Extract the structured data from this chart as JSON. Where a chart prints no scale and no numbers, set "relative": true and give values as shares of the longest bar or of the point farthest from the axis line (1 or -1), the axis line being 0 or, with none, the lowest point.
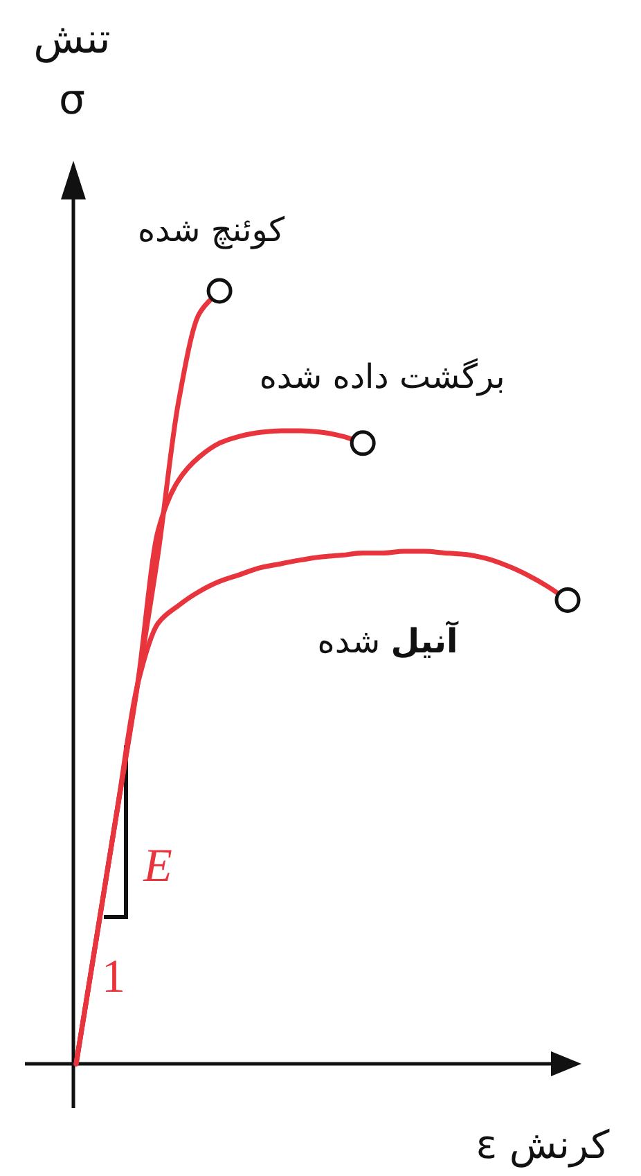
{
  "chart_data": {
    "type": "line",
    "relative": true,
    "xlabel": "ε کرنش",
    "ylabel": "تنش σ",
    "categories": [
      null,
      null,
      null,
      null,
      null,
      null,
      null,
      null,
      null,
      null,
      null,
      null,
      null,
      null,
      null,
      null,
      null,
      null,
      null,
      null,
      null,
      null,
      null,
      null,
      null
    ],
    "series": [
      {
        "name": "کوئنچ شده",
        "color": "#e8343c",
        "values": [
          0,
          0.164,
          0.328,
          0.491,
          0.66,
          0.857,
          0.97,
          1.0,
          null,
          null,
          null,
          null,
          null,
          null,
          null,
          null,
          null,
          null,
          null,
          null,
          null,
          null,
          null,
          null,
          null
        ]
      },
      {
        "name": "برگشت داده شده",
        "color": "#e8343c",
        "values": [
          0,
          0.164,
          0.328,
          0.491,
          0.69,
          0.755,
          0.785,
          0.803,
          0.812,
          0.817,
          0.819,
          0.819,
          0.817,
          0.812,
          0.803,
          null,
          null,
          null,
          null,
          null,
          null,
          null,
          null,
          null,
          null
        ]
      },
      {
        "name": "**آنیل** شده",
        "color": "#e8343c",
        "values": [
          0,
          0.164,
          0.328,
          0.491,
          0.57,
          0.593,
          0.611,
          0.624,
          0.633,
          0.642,
          0.647,
          0.652,
          0.656,
          0.658,
          0.661,
          0.661,
          0.663,
          0.663,
          0.661,
          0.659,
          0.654,
          0.645,
          0.633,
          0.618,
          0.6
        ]
      }
    ],
    "annotations": [
      "E",
      "1"
    ]
  }
}
